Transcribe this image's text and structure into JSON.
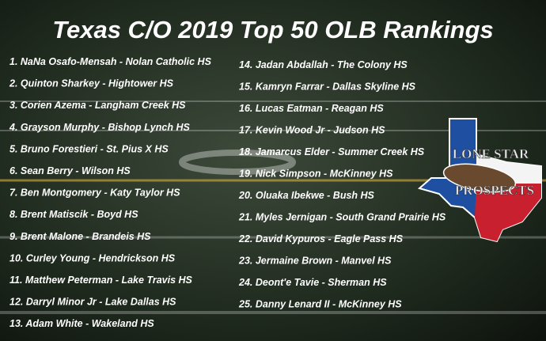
{
  "title": "Texas C/O 2019 Top 50 OLB Rankings",
  "left_list": [
    "1. NaNa Osafo-Mensah - Nolan Catholic HS",
    "2. Quinton Sharkey - Hightower HS",
    "3. Corien Azema - Langham Creek HS",
    "4. Grayson Murphy - Bishop Lynch HS",
    "5. Bruno Forestieri - St. Pius X HS",
    "6. Sean Berry - Wilson HS",
    "7. Ben Montgomery - Katy Taylor HS",
    "8. Brent Matiscik - Boyd HS",
    "9. Brent Malone - Brandeis HS",
    "10. Curley Young - Hendrickson HS",
    "11. Matthew Peterman - Lake Travis HS",
    "12. Darryl Minor Jr - Lake Dallas HS",
    "13. Adam White - Wakeland HS"
  ],
  "right_list": [
    "14. Jadan Abdallah - The Colony HS",
    "15. Kamryn Farrar - Dallas Skyline HS",
    "16. Lucas Eatman - Reagan HS",
    "17. Kevin Wood Jr - Judson HS",
    "18. Jamarcus Elder - Summer Creek HS",
    "19. Nick Simpson - McKinney HS",
    "20. Oluaka Ibekwe - Bush HS",
    "21. Myles Jernigan - South Grand Prairie HS",
    "22. David Kypuros - Eagle Pass HS",
    "23. Jermaine Brown - Manvel HS",
    "24. Deont'e Tavie - Sherman HS",
    "25. Danny Lenard II - McKinney HS"
  ],
  "logo": {
    "top": "LONE STAR",
    "bottom": "PROSPECTS"
  }
}
